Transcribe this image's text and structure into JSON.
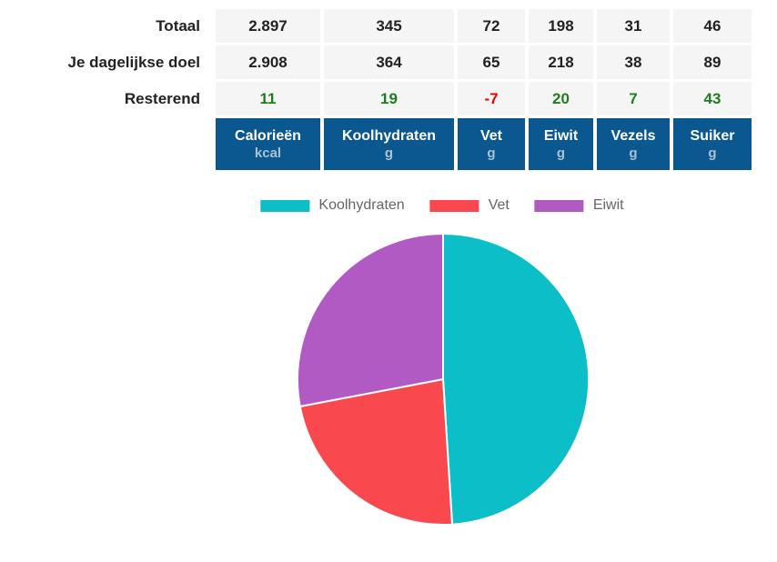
{
  "table": {
    "row_labels": [
      "Totaal",
      "Je dagelijkse doel",
      "Resterend"
    ],
    "columns": [
      {
        "label": "Calorieën",
        "unit": "kcal"
      },
      {
        "label": "Koolhydraten",
        "unit": "g"
      },
      {
        "label": "Vet",
        "unit": "g"
      },
      {
        "label": "Eiwit",
        "unit": "g"
      },
      {
        "label": "Vezels",
        "unit": "g"
      },
      {
        "label": "Suiker",
        "unit": "g"
      }
    ],
    "totals": [
      "2.897",
      "345",
      "72",
      "198",
      "31",
      "46"
    ],
    "goals": [
      "2.908",
      "364",
      "65",
      "218",
      "38",
      "89"
    ],
    "remaining": [
      "11",
      "19",
      "-7",
      "20",
      "7",
      "43"
    ]
  },
  "chart_data": {
    "type": "pie",
    "labels": [
      "Koolhydraten",
      "Vet",
      "Eiwit"
    ],
    "values": [
      49,
      23,
      28
    ],
    "unit": "percent",
    "colors": [
      "#0cbec8",
      "#f9494e",
      "#b25ac4"
    ],
    "start_angle_deg": 0,
    "direction": "clockwise",
    "legend_position": "top-center",
    "slice_border_color": "#ffffff"
  },
  "colors": {
    "header_bg": "#0a588f",
    "header_text": "#ffffff",
    "header_unit": "#a8c2d3",
    "cell_bg": "#f5f5f5",
    "value_text": "#222222",
    "positive": "#1e7d1e",
    "negative": "#ee0000",
    "legend_text": "#666666"
  }
}
